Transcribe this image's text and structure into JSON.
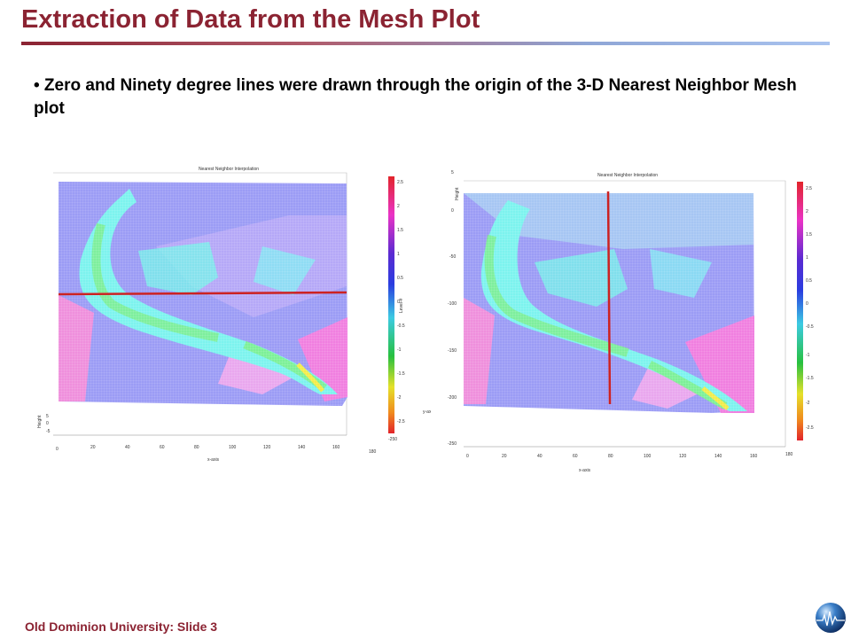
{
  "slide": {
    "title": "Extraction of Data from the Mesh Plot",
    "bullet": "• Zero and Ninety degree lines were drawn through the origin of the 3-D Nearest Neighbor Mesh plot",
    "footer": "Old Dominion University: Slide 3",
    "logo_icon": "globe-logo-icon"
  },
  "plots": [
    {
      "title": "Nearest Neighbor Interpolation",
      "xlabel": "x-axis",
      "ylabel": "y-axis",
      "zlabel": "Height",
      "colorbar_label": "Level-#",
      "x_ticks": [
        "0",
        "20",
        "40",
        "60",
        "80",
        "100",
        "120",
        "140",
        "160",
        "180"
      ],
      "z_ticks": [
        "5",
        "0",
        "-5"
      ],
      "colorbar_ticks": [
        "2.5",
        "2",
        "1.5",
        "1",
        "0.5",
        "0",
        "-0.5",
        "-1",
        "-1.5",
        "-2",
        "-2.5",
        "-250"
      ],
      "line": "zero-degree"
    },
    {
      "title": "Nearest Neighbor Interpolation",
      "xlabel": "x-axis",
      "zlabel": "Height",
      "x_ticks": [
        "0",
        "20",
        "40",
        "60",
        "80",
        "100",
        "120",
        "140",
        "160",
        "180"
      ],
      "y_ticks": [
        "5",
        "0",
        "-50",
        "-100",
        "-150",
        "-200",
        "-250"
      ],
      "colorbar_ticks": [
        "2.5",
        "2",
        "1.5",
        "1",
        "0.5",
        "0",
        "-0.5",
        "-1",
        "-1.5",
        "-2",
        "-2.5"
      ],
      "line": "ninety-degree"
    }
  ],
  "colors": {
    "title": "#8b2332",
    "line": "#cc2222",
    "mesh_base": "#9b9cf5",
    "channel": "#7cf3ee",
    "hot": "#f26fd6"
  }
}
